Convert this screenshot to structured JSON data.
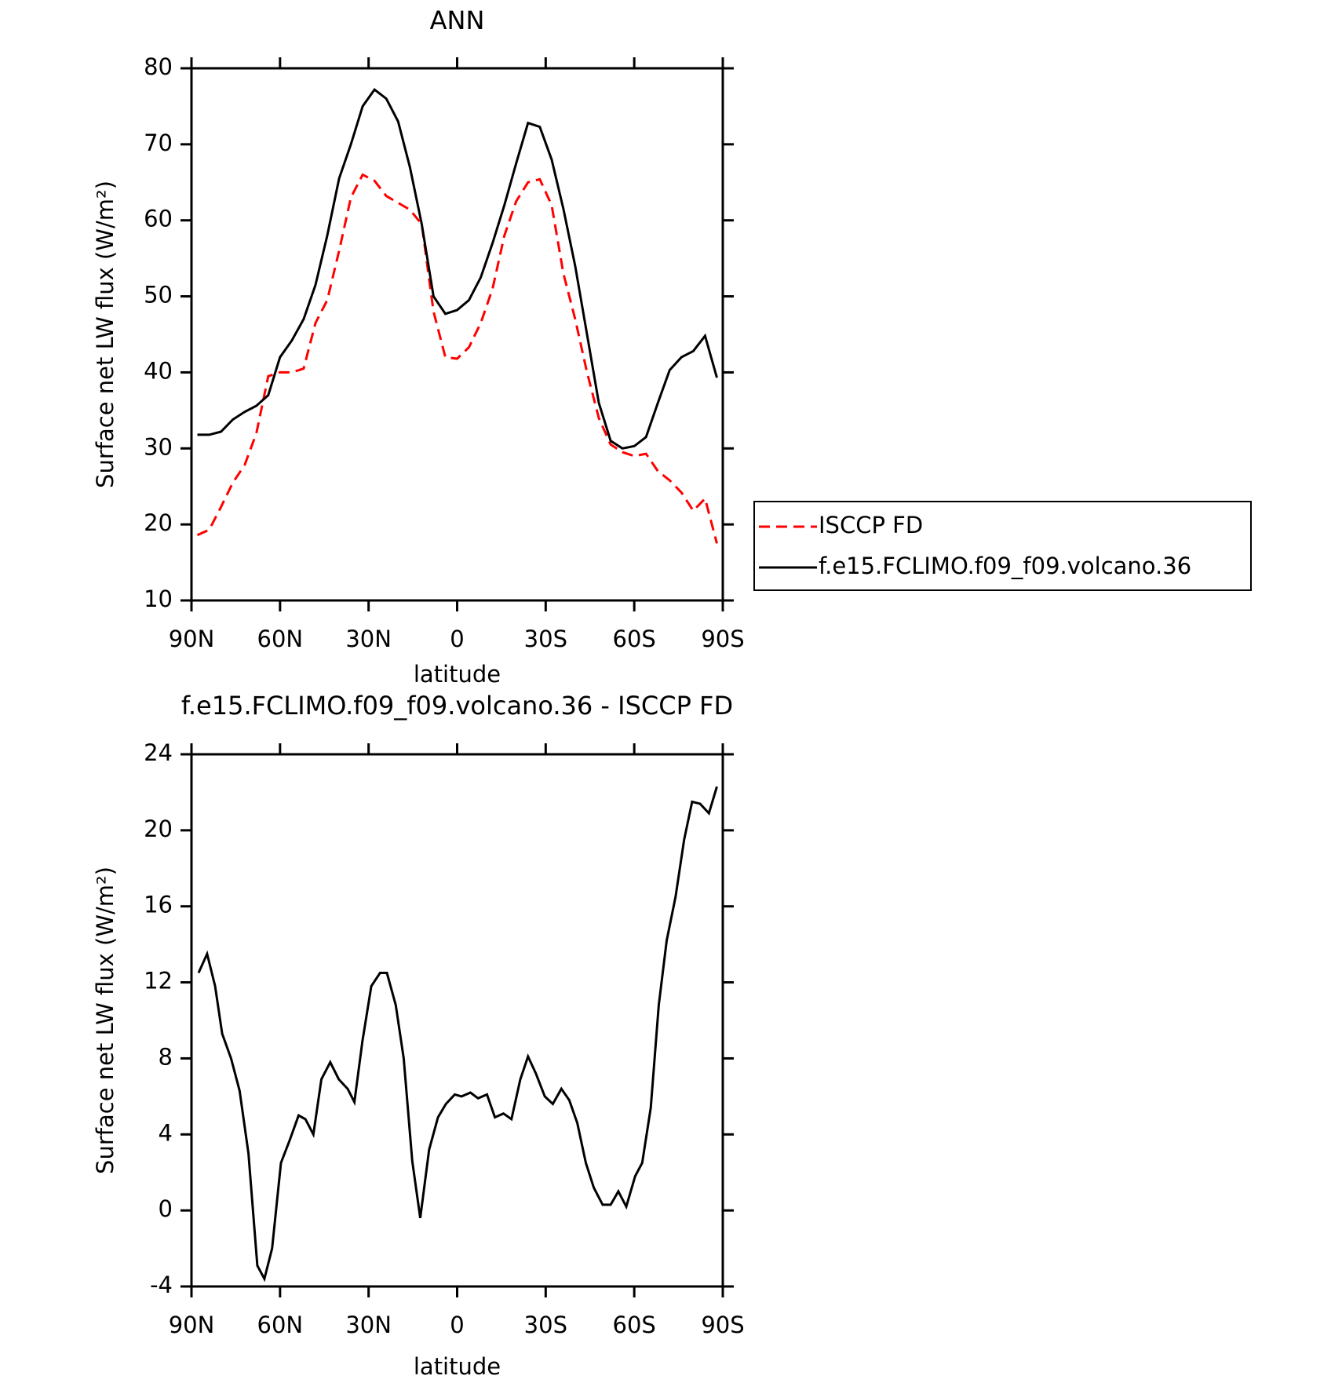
{
  "chart_data": [
    {
      "type": "line",
      "title": "ANN",
      "x_label": "latitude",
      "y_label": "Surface net LW flux (W/m²)",
      "x": [
        88,
        84,
        80,
        76,
        72,
        68,
        64,
        60,
        56,
        52,
        48,
        44,
        40,
        36,
        32,
        28,
        24,
        20,
        16,
        12,
        8,
        4,
        0,
        -4,
        -8,
        -12,
        -16,
        -20,
        -24,
        -28,
        -32,
        -36,
        -40,
        -44,
        -48,
        -52,
        -56,
        -60,
        -64,
        -68,
        -72,
        -76,
        -80,
        -84,
        -88
      ],
      "series": [
        {
          "name": "ISCCP FD",
          "color": "#ff0000",
          "linestyle": "dashed",
          "values": [
            18.6,
            19.3,
            22.3,
            25.5,
            27.8,
            32,
            39.5,
            40,
            40,
            40.5,
            46.5,
            49.5,
            56,
            63,
            66,
            65.2,
            63.2,
            62.3,
            61.4,
            59.5,
            48,
            42,
            41.8,
            43.3,
            46.5,
            51,
            58,
            62.5,
            65,
            65.4,
            62,
            53,
            47,
            40,
            34,
            30.5,
            29.5,
            29,
            29.3,
            27,
            25.8,
            24.2,
            21.8,
            23.4,
            17.5
          ]
        },
        {
          "name": "f.e15.FCLIMO.f09_f09.volcano.36",
          "color": "#000000",
          "linestyle": "solid",
          "values": [
            31.8,
            31.8,
            32.2,
            33.8,
            34.8,
            35.6,
            37,
            42,
            44.2,
            47,
            51.5,
            58,
            65.5,
            70,
            75,
            77.2,
            76,
            73,
            67,
            59.5,
            50,
            47.7,
            48.2,
            49.5,
            52.5,
            57,
            62,
            67.5,
            72.8,
            72.3,
            68,
            61.5,
            54,
            45,
            36,
            31,
            30,
            30.3,
            31.5,
            36,
            40.3,
            42,
            42.8,
            44.8,
            39.3
          ]
        }
      ],
      "xlim": [
        90,
        -90
      ],
      "xticks": [
        {
          "value": 90,
          "label": "90N"
        },
        {
          "value": 60,
          "label": "60N"
        },
        {
          "value": 30,
          "label": "30N"
        },
        0,
        {
          "value": -30,
          "label": "30S"
        },
        {
          "value": -60,
          "label": "60S"
        },
        {
          "value": -90,
          "label": "90S"
        }
      ],
      "ylim": [
        10,
        80
      ],
      "yticks": [
        10,
        20,
        30,
        40,
        50,
        60,
        70,
        80
      ],
      "legend": "outside right"
    },
    {
      "type": "line",
      "title": "f.e15.FCLIMO.f09_f09.volcano.36 - ISCCP FD",
      "x_label": "latitude",
      "y_label": "Surface net LW flux (W/m²)",
      "x": [
        87.6,
        84.7,
        82.0,
        79.6,
        76.6,
        73.7,
        70.7,
        67.7,
        65.3,
        62.7,
        59.7,
        56.7,
        53.7,
        51.4,
        48.7,
        46.0,
        43.0,
        40.1,
        37.1,
        34.8,
        32.1,
        29.1,
        26.1,
        23.8,
        20.8,
        18.1,
        15.2,
        12.5,
        9.5,
        6.5,
        3.8,
        0.8,
        -1.5,
        -4.5,
        -7.1,
        -10.1,
        -12.8,
        -15.7,
        -18.4,
        -21.4,
        -24.0,
        -26.7,
        -29.7,
        -32.4,
        -35.3,
        -38.0,
        -40.7,
        -43.6,
        -46.3,
        -49.3,
        -52.0,
        -54.6,
        -57.3,
        -60.3,
        -62.7,
        -65.6,
        -68.3,
        -71.0,
        -74.0,
        -76.9,
        -79.6,
        -82.3,
        -85.3,
        -88.0
      ],
      "series": [
        {
          "color": "#000000",
          "linestyle": "solid",
          "values": [
            12.5,
            13.5,
            11.8,
            9.3,
            8,
            6.3,
            3,
            -2.9,
            -3.6,
            -2,
            2.5,
            3.7,
            5,
            4.8,
            4,
            6.9,
            7.8,
            6.9,
            6.4,
            5.7,
            8.9,
            11.8,
            12.5,
            12.5,
            10.8,
            8,
            2.6,
            -0.4,
            3.2,
            4.9,
            5.6,
            6.1,
            6,
            6.2,
            5.9,
            6.1,
            4.9,
            5.1,
            4.8,
            6.9,
            8.1,
            7.2,
            6,
            5.6,
            6.4,
            5.8,
            4.6,
            2.5,
            1.2,
            0.3,
            0.3,
            1,
            0.2,
            1.8,
            2.5,
            5.4,
            10.8,
            14.2,
            16.5,
            19.5,
            21.5,
            21.4,
            20.9,
            22.3
          ]
        }
      ],
      "xlim": [
        90,
        -90
      ],
      "xticks": [
        {
          "value": 90,
          "label": "90N"
        },
        {
          "value": 60,
          "label": "60N"
        },
        {
          "value": 30,
          "label": "30N"
        },
        0,
        {
          "value": -30,
          "label": "30S"
        },
        {
          "value": -60,
          "label": "60S"
        },
        {
          "value": -90,
          "label": "90S"
        }
      ],
      "ylim": [
        -4,
        24
      ],
      "yticks": [
        -4,
        0,
        4,
        8,
        12,
        16,
        20,
        24
      ]
    }
  ]
}
